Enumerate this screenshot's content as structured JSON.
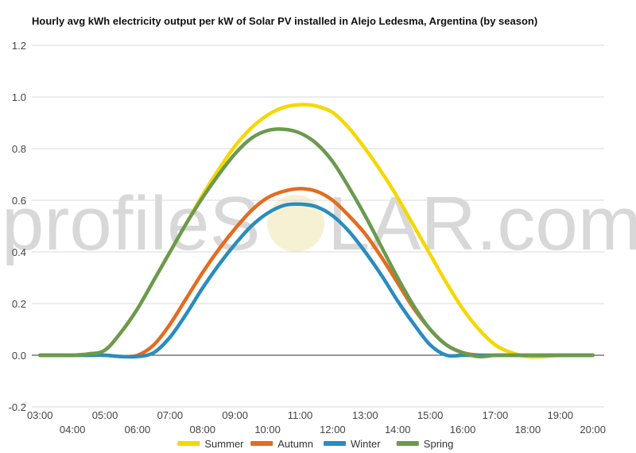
{
  "chart_data": {
    "type": "line",
    "title": "Hourly avg kWh electricity output per kW of Solar PV installed in Alejo Ledesma, Argentina (by season)",
    "xlabel": "",
    "ylabel": "",
    "ylim": [
      -0.2,
      1.2
    ],
    "y_ticks": [
      "1.2",
      "1.0",
      "0.8",
      "0.6",
      "0.4",
      "0.2",
      "0.0",
      "-0.2"
    ],
    "x_ticks": [
      "03:00",
      "04:00",
      "05:00",
      "06:00",
      "07:00",
      "08:00",
      "09:00",
      "10:00",
      "11:00",
      "12:00",
      "13:00",
      "14:00",
      "15:00",
      "16:00",
      "17:00",
      "18:00",
      "19:00",
      "20:00"
    ],
    "x": [
      3.0,
      3.5,
      4.0,
      4.5,
      5.0,
      5.5,
      6.0,
      6.5,
      7.0,
      7.5,
      8.0,
      8.5,
      9.0,
      9.5,
      10.0,
      10.5,
      11.0,
      11.5,
      12.0,
      12.5,
      13.0,
      13.5,
      14.0,
      14.5,
      15.0,
      15.5,
      16.0,
      16.5,
      17.0,
      17.5,
      18.0,
      18.5,
      19.0,
      19.5,
      20.0
    ],
    "grid": true,
    "legend_position": "bottom",
    "series": [
      {
        "name": "Summer",
        "color": "#f5d800",
        "values": [
          0,
          0,
          0,
          0.005,
          0.02,
          0.09,
          0.18,
          0.29,
          0.4,
          0.51,
          0.62,
          0.72,
          0.81,
          0.88,
          0.93,
          0.96,
          0.97,
          0.965,
          0.94,
          0.88,
          0.8,
          0.71,
          0.61,
          0.5,
          0.39,
          0.28,
          0.18,
          0.1,
          0.04,
          0.01,
          -0.005,
          -0.005,
          0,
          0,
          0
        ]
      },
      {
        "name": "Autumn",
        "color": "#e36c20",
        "values": [
          0,
          0,
          0,
          0,
          0,
          -0.005,
          0,
          0.04,
          0.12,
          0.22,
          0.32,
          0.41,
          0.49,
          0.56,
          0.61,
          0.635,
          0.645,
          0.635,
          0.6,
          0.54,
          0.47,
          0.38,
          0.28,
          0.18,
          0.1,
          0.04,
          0.01,
          0,
          0,
          0,
          0,
          0,
          0,
          0,
          0
        ]
      },
      {
        "name": "Winter",
        "color": "#2a8cbf",
        "values": [
          0,
          0,
          0,
          0,
          0,
          -0.005,
          -0.005,
          0.01,
          0.07,
          0.16,
          0.26,
          0.35,
          0.43,
          0.5,
          0.55,
          0.58,
          0.585,
          0.575,
          0.54,
          0.48,
          0.4,
          0.31,
          0.21,
          0.12,
          0.04,
          0,
          0,
          0,
          0,
          0,
          0,
          0,
          0,
          0,
          0
        ]
      },
      {
        "name": "Spring",
        "color": "#6b9a4f",
        "values": [
          0,
          0,
          0,
          0.005,
          0.02,
          0.09,
          0.18,
          0.29,
          0.4,
          0.51,
          0.61,
          0.7,
          0.78,
          0.84,
          0.87,
          0.875,
          0.86,
          0.82,
          0.75,
          0.65,
          0.54,
          0.42,
          0.3,
          0.19,
          0.1,
          0.04,
          0.01,
          -0.005,
          0,
          0,
          0,
          0,
          0,
          0,
          0
        ]
      }
    ]
  },
  "watermark": {
    "text_left": "profileS",
    "text_right": "LAR.com"
  }
}
